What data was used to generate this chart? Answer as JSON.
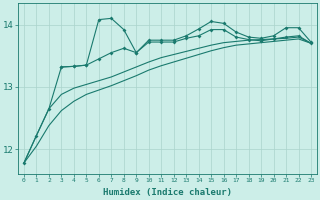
{
  "xlabel": "Humidex (Indice chaleur)",
  "background_color": "#cceee8",
  "line_color": "#1a7a6e",
  "grid_color": "#aad4cc",
  "x_values": [
    0,
    1,
    2,
    3,
    4,
    5,
    6,
    7,
    8,
    9,
    10,
    11,
    12,
    13,
    14,
    15,
    16,
    17,
    18,
    19,
    20,
    21,
    22,
    23
  ],
  "line1": [
    11.78,
    12.22,
    12.65,
    13.32,
    13.33,
    13.35,
    14.08,
    14.1,
    13.92,
    13.55,
    13.75,
    13.75,
    13.75,
    13.82,
    13.93,
    14.05,
    14.02,
    13.88,
    13.8,
    13.78,
    13.82,
    13.95,
    13.95,
    13.72
  ],
  "line2": [
    null,
    null,
    null,
    13.32,
    13.33,
    13.35,
    13.45,
    13.55,
    13.62,
    13.55,
    13.72,
    13.72,
    13.72,
    13.78,
    13.82,
    13.92,
    13.92,
    13.8,
    13.76,
    13.74,
    13.77,
    13.8,
    13.82,
    13.7
  ],
  "line3": [
    11.78,
    12.22,
    12.65,
    12.88,
    12.98,
    13.04,
    13.1,
    13.16,
    13.24,
    13.32,
    13.4,
    13.47,
    13.52,
    13.57,
    13.62,
    13.67,
    13.71,
    13.73,
    13.75,
    13.76,
    13.77,
    13.78,
    13.8,
    13.7
  ],
  "line4": [
    11.78,
    12.05,
    12.38,
    12.62,
    12.77,
    12.88,
    12.95,
    13.02,
    13.1,
    13.18,
    13.27,
    13.34,
    13.4,
    13.46,
    13.52,
    13.58,
    13.63,
    13.67,
    13.69,
    13.71,
    13.73,
    13.75,
    13.77,
    13.7
  ],
  "ylim": [
    11.6,
    14.35
  ],
  "yticks": [
    12,
    13,
    14
  ],
  "xticks": [
    0,
    1,
    2,
    3,
    4,
    5,
    6,
    7,
    8,
    9,
    10,
    11,
    12,
    13,
    14,
    15,
    16,
    17,
    18,
    19,
    20,
    21,
    22,
    23
  ]
}
